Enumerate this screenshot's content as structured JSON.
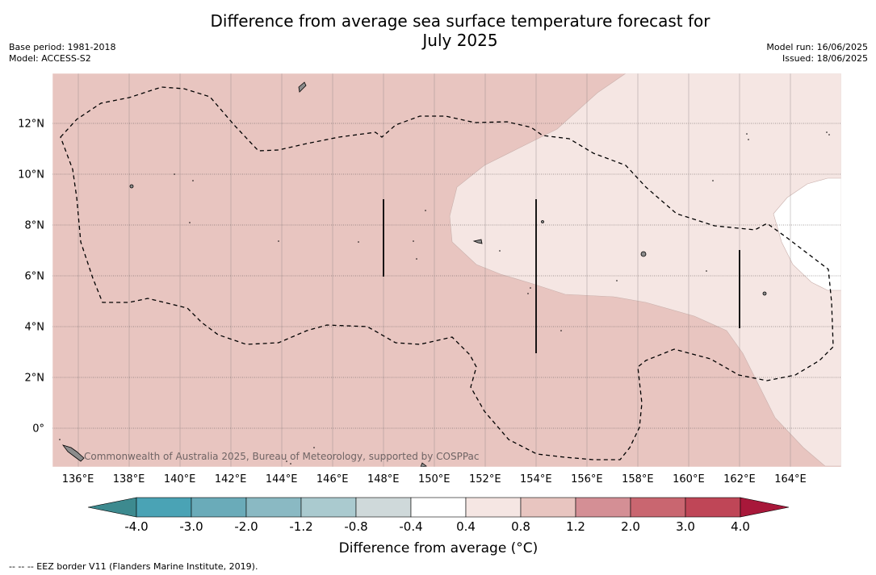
{
  "title_line1": "Difference from average sea surface temperature forecast for",
  "title_line2": "July 2025",
  "base_period": "Base period: 1981-2018",
  "model": "Model: ACCESS-S2",
  "model_run": "Model run: 16/06/2025",
  "issued": "Issued: 18/06/2025",
  "copyright": "Commonwealth of Australia 2025, Bureau of Meteorology, supported by COSPPac",
  "footer": "--  --  -- EEZ border V11 (Flanders Marine Institute, 2019).",
  "map": {
    "lon_range": [
      135,
      166
    ],
    "lat_range": [
      -1.5,
      14
    ],
    "lon_ticks": [
      "136°E",
      "138°E",
      "140°E",
      "142°E",
      "144°E",
      "146°E",
      "148°E",
      "150°E",
      "152°E",
      "154°E",
      "156°E",
      "158°E",
      "160°E",
      "162°E",
      "164°E"
    ],
    "lon_values": [
      136,
      138,
      140,
      142,
      144,
      146,
      148,
      150,
      152,
      154,
      156,
      158,
      160,
      162,
      164
    ],
    "lat_ticks": [
      "12°N",
      "10°N",
      "8°N",
      "6°N",
      "4°N",
      "2°N",
      "0°"
    ],
    "lat_values": [
      12,
      10,
      8,
      6,
      4,
      2,
      0
    ],
    "gridlines": true,
    "colors": {
      "anomaly_0_8_to_1_2": "#e8c5c0",
      "anomaly_0_4_to_0_8": "#f5e6e3",
      "anomaly_m0_4_to_0_4": "#ffffff",
      "land": "#8c8c8c"
    }
  },
  "colorbar": {
    "title": "Difference from average (°C)",
    "tick_labels": [
      "-4.0",
      "-3.0",
      "-2.0",
      "-1.2",
      "-0.8",
      "-0.4",
      "0.4",
      "0.8",
      "1.2",
      "2.0",
      "3.0",
      "4.0"
    ],
    "colors": [
      "#4aa3b5",
      "#6aabb9",
      "#8ab9c3",
      "#aacacf",
      "#cfd9da",
      "#ffffff",
      "#f5e6e3",
      "#e8c5c0",
      "#d48f95",
      "#c96670",
      "#bf4657"
    ],
    "extend_low_color": "#3d8a8f",
    "extend_high_color": "#a8183a"
  }
}
